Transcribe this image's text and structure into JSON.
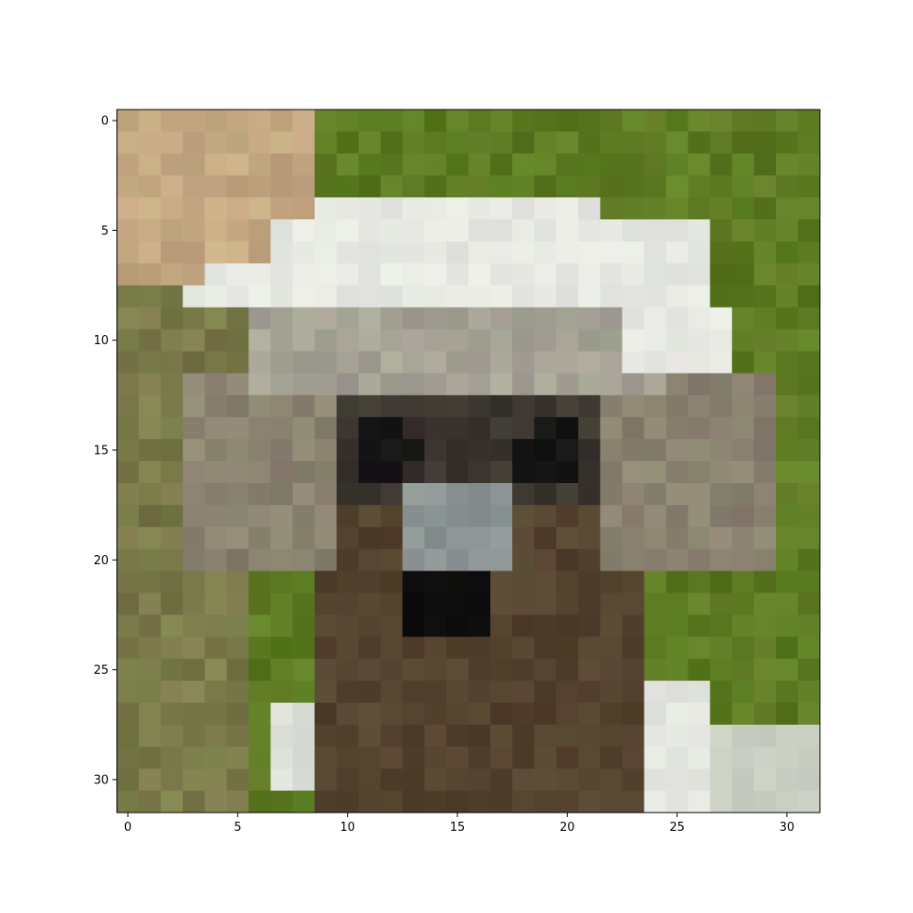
{
  "axes": {
    "x": {
      "min": -0.5,
      "max": 31.5,
      "ticks": [
        0,
        5,
        10,
        15,
        20,
        25,
        30
      ],
      "tick_labels": [
        "0",
        "5",
        "10",
        "15",
        "20",
        "25",
        "30"
      ]
    },
    "y": {
      "min": -0.5,
      "max": 31.5,
      "inverted": true,
      "ticks": [
        0,
        5,
        10,
        15,
        20,
        25,
        30
      ],
      "tick_labels": [
        "0",
        "5",
        "10",
        "15",
        "20",
        "25",
        "30"
      ]
    }
  },
  "image": {
    "rows": 32,
    "cols": 32,
    "subject": "pixelated close-up of a primate face with white fur crown on grassy green background",
    "colors": {
      "background_green": "#5c7a22",
      "tan_fur": "#c4a882",
      "white_fur": "#e6e8e2",
      "gray_face": "#8a8270",
      "dark_eye": "#141414",
      "nose_gray": "#8c9494",
      "brown_body": "#54432f",
      "mouth_black": "#0c0c0c"
    }
  }
}
